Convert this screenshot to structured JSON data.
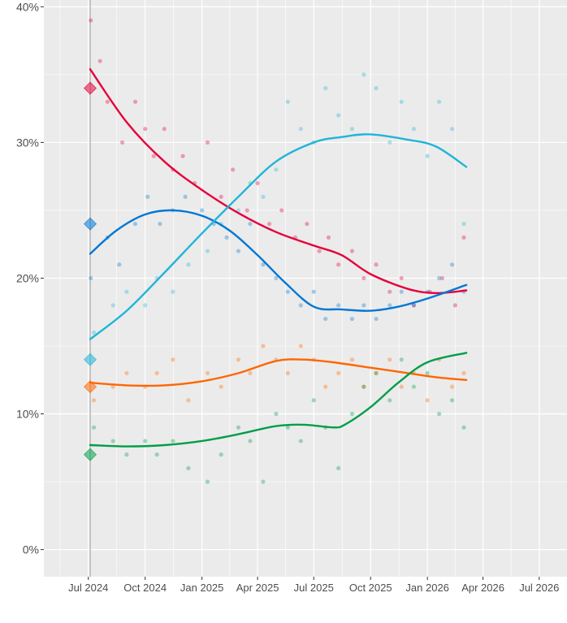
{
  "chart_data": {
    "type": "scatter",
    "title": "",
    "xlabel": "",
    "ylabel": "",
    "x_ticks": [
      "Jul 2024",
      "Oct 2024",
      "Jan 2025",
      "Apr 2025",
      "Jul 2025",
      "Oct 2025",
      "Jan 2026",
      "Apr 2026",
      "Jul 2026"
    ],
    "y_ticks": [
      "0%",
      "10%",
      "20%",
      "30%",
      "40%"
    ],
    "ylim": [
      -2,
      40.5
    ],
    "xlim": [
      "2024-04-20",
      "2026-08-15"
    ],
    "reference_line_date": "2024-07-04",
    "grid": true,
    "legend": "none",
    "series": [
      {
        "color": "#E4003B",
        "marker": 34,
        "trend": [
          [
            "2024-07-04",
            35.4
          ],
          [
            "2024-09-01",
            31.5
          ],
          [
            "2024-11-01",
            28.6
          ],
          [
            "2025-01-01",
            26.5
          ],
          [
            "2025-03-01",
            24.8
          ],
          [
            "2025-05-01",
            23.4
          ],
          [
            "2025-07-01",
            22.4
          ],
          [
            "2025-08-15",
            21.7
          ],
          [
            "2025-10-01",
            20.3
          ],
          [
            "2025-12-01",
            19.2
          ],
          [
            "2026-01-15",
            18.9
          ],
          [
            "2026-03-05",
            19.1
          ]
        ],
        "points": [
          [
            "2024-07-05",
            39
          ],
          [
            "2024-07-20",
            36
          ],
          [
            "2024-08-01",
            33
          ],
          [
            "2024-08-25",
            30
          ],
          [
            "2024-09-15",
            33
          ],
          [
            "2024-10-01",
            31
          ],
          [
            "2024-10-15",
            29
          ],
          [
            "2024-11-01",
            31
          ],
          [
            "2024-11-15",
            28
          ],
          [
            "2024-12-01",
            29
          ],
          [
            "2024-12-20",
            27
          ],
          [
            "2025-01-10",
            30
          ],
          [
            "2025-02-01",
            26
          ],
          [
            "2025-02-20",
            28
          ],
          [
            "2025-03-15",
            25
          ],
          [
            "2025-04-01",
            27
          ],
          [
            "2025-04-20",
            24
          ],
          [
            "2025-05-10",
            25
          ],
          [
            "2025-06-01",
            23
          ],
          [
            "2025-06-20",
            24
          ],
          [
            "2025-07-10",
            22
          ],
          [
            "2025-07-25",
            23
          ],
          [
            "2025-08-10",
            21
          ],
          [
            "2025-09-01",
            22
          ],
          [
            "2025-09-20",
            20
          ],
          [
            "2025-10-10",
            21
          ],
          [
            "2025-11-01",
            19
          ],
          [
            "2025-11-20",
            20
          ],
          [
            "2025-12-10",
            18
          ],
          [
            "2026-01-05",
            19
          ],
          [
            "2026-01-25",
            20
          ],
          [
            "2026-02-15",
            18
          ],
          [
            "2026-03-01",
            23
          ]
        ]
      },
      {
        "color": "#0077D4",
        "marker": 24,
        "trend": [
          [
            "2024-07-04",
            21.8
          ],
          [
            "2024-08-15",
            23.5
          ],
          [
            "2024-10-01",
            24.7
          ],
          [
            "2024-11-15",
            25.0
          ],
          [
            "2025-01-01",
            24.6
          ],
          [
            "2025-02-15",
            23.5
          ],
          [
            "2025-04-01",
            21.7
          ],
          [
            "2025-05-15",
            19.7
          ],
          [
            "2025-07-01",
            17.9
          ],
          [
            "2025-08-15",
            17.7
          ],
          [
            "2025-10-01",
            17.6
          ],
          [
            "2025-11-15",
            17.9
          ],
          [
            "2026-01-01",
            18.5
          ],
          [
            "2026-03-05",
            19.5
          ]
        ],
        "points": [
          [
            "2024-07-05",
            20
          ],
          [
            "2024-08-01",
            23
          ],
          [
            "2024-08-20",
            21
          ],
          [
            "2024-09-15",
            24
          ],
          [
            "2024-10-05",
            26
          ],
          [
            "2024-10-25",
            24
          ],
          [
            "2024-11-15",
            25
          ],
          [
            "2024-12-05",
            26
          ],
          [
            "2025-01-01",
            25
          ],
          [
            "2025-01-20",
            24
          ],
          [
            "2025-02-10",
            23
          ],
          [
            "2025-03-01",
            22
          ],
          [
            "2025-03-20",
            24
          ],
          [
            "2025-04-10",
            21
          ],
          [
            "2025-05-01",
            20
          ],
          [
            "2025-05-20",
            19
          ],
          [
            "2025-06-10",
            18
          ],
          [
            "2025-07-01",
            19
          ],
          [
            "2025-07-20",
            17
          ],
          [
            "2025-08-10",
            18
          ],
          [
            "2025-09-01",
            17
          ],
          [
            "2025-09-20",
            18
          ],
          [
            "2025-10-10",
            17
          ],
          [
            "2025-11-01",
            18
          ],
          [
            "2025-11-20",
            19
          ],
          [
            "2025-12-10",
            18
          ],
          [
            "2026-01-01",
            19
          ],
          [
            "2026-01-20",
            20
          ],
          [
            "2026-02-10",
            21
          ],
          [
            "2026-03-01",
            19
          ]
        ]
      },
      {
        "color": "#1FB5D8",
        "marker": 14,
        "trend": [
          [
            "2024-07-04",
            15.5
          ],
          [
            "2024-09-01",
            17.6
          ],
          [
            "2024-11-01",
            20.4
          ],
          [
            "2025-01-01",
            23.3
          ],
          [
            "2025-03-01",
            26.0
          ],
          [
            "2025-05-01",
            28.6
          ],
          [
            "2025-07-01",
            30.0
          ],
          [
            "2025-08-15",
            30.4
          ],
          [
            "2025-10-01",
            30.6
          ],
          [
            "2025-12-01",
            30.2
          ],
          [
            "2026-01-15",
            29.7
          ],
          [
            "2026-03-05",
            28.2
          ]
        ],
        "points": [
          [
            "2024-07-10",
            16
          ],
          [
            "2024-08-10",
            18
          ],
          [
            "2024-09-01",
            19
          ],
          [
            "2024-10-01",
            18
          ],
          [
            "2024-10-20",
            20
          ],
          [
            "2024-11-15",
            19
          ],
          [
            "2024-12-10",
            21
          ],
          [
            "2025-01-10",
            22
          ],
          [
            "2025-02-01",
            24
          ],
          [
            "2025-03-01",
            25
          ],
          [
            "2025-03-20",
            27
          ],
          [
            "2025-04-10",
            26
          ],
          [
            "2025-05-01",
            28
          ],
          [
            "2025-05-20",
            33
          ],
          [
            "2025-06-10",
            31
          ],
          [
            "2025-07-01",
            30
          ],
          [
            "2025-07-20",
            34
          ],
          [
            "2025-08-10",
            32
          ],
          [
            "2025-09-01",
            31
          ],
          [
            "2025-09-20",
            35
          ],
          [
            "2025-10-10",
            34
          ],
          [
            "2025-11-01",
            30
          ],
          [
            "2025-11-20",
            33
          ],
          [
            "2025-12-10",
            31
          ],
          [
            "2026-01-01",
            29
          ],
          [
            "2026-01-20",
            33
          ],
          [
            "2026-02-10",
            31
          ],
          [
            "2026-03-01",
            24
          ]
        ]
      },
      {
        "color": "#FF6600",
        "marker": 12,
        "trend": [
          [
            "2024-07-04",
            12.3
          ],
          [
            "2024-09-01",
            12.1
          ],
          [
            "2024-11-01",
            12.1
          ],
          [
            "2025-01-01",
            12.4
          ],
          [
            "2025-03-01",
            13.0
          ],
          [
            "2025-05-01",
            13.9
          ],
          [
            "2025-06-15",
            14.0
          ],
          [
            "2025-08-01",
            13.8
          ],
          [
            "2025-10-01",
            13.4
          ],
          [
            "2025-12-01",
            13.0
          ],
          [
            "2026-01-15",
            12.7
          ],
          [
            "2026-03-05",
            12.5
          ]
        ],
        "points": [
          [
            "2024-07-10",
            11
          ],
          [
            "2024-08-10",
            12
          ],
          [
            "2024-09-01",
            13
          ],
          [
            "2024-10-01",
            12
          ],
          [
            "2024-10-20",
            13
          ],
          [
            "2024-11-15",
            14
          ],
          [
            "2024-12-10",
            11
          ],
          [
            "2025-01-10",
            13
          ],
          [
            "2025-02-01",
            12
          ],
          [
            "2025-03-01",
            14
          ],
          [
            "2025-03-20",
            13
          ],
          [
            "2025-04-10",
            15
          ],
          [
            "2025-05-01",
            14
          ],
          [
            "2025-05-20",
            13
          ],
          [
            "2025-06-10",
            15
          ],
          [
            "2025-07-01",
            14
          ],
          [
            "2025-07-20",
            12
          ],
          [
            "2025-08-10",
            13
          ],
          [
            "2025-09-01",
            14
          ],
          [
            "2025-09-20",
            12
          ],
          [
            "2025-10-10",
            13
          ],
          [
            "2025-11-01",
            14
          ],
          [
            "2025-11-20",
            12
          ],
          [
            "2025-12-10",
            13
          ],
          [
            "2026-01-01",
            11
          ],
          [
            "2026-01-20",
            14
          ],
          [
            "2026-02-10",
            12
          ],
          [
            "2026-03-01",
            13
          ]
        ]
      },
      {
        "color": "#009E49",
        "marker": 7,
        "trend": [
          [
            "2024-07-04",
            7.7
          ],
          [
            "2024-09-01",
            7.6
          ],
          [
            "2024-11-01",
            7.7
          ],
          [
            "2025-01-01",
            8.0
          ],
          [
            "2025-03-01",
            8.5
          ],
          [
            "2025-05-01",
            9.1
          ],
          [
            "2025-06-15",
            9.2
          ],
          [
            "2025-08-01",
            9.0
          ],
          [
            "2025-08-20",
            9.2
          ],
          [
            "2025-10-01",
            10.5
          ],
          [
            "2025-11-15",
            12.3
          ],
          [
            "2026-01-01",
            13.8
          ],
          [
            "2026-03-05",
            14.5
          ]
        ],
        "points": [
          [
            "2024-07-10",
            9
          ],
          [
            "2024-08-10",
            8
          ],
          [
            "2024-09-01",
            7
          ],
          [
            "2024-10-01",
            8
          ],
          [
            "2024-10-20",
            7
          ],
          [
            "2024-11-15",
            8
          ],
          [
            "2024-12-10",
            6
          ],
          [
            "2025-01-10",
            5
          ],
          [
            "2025-02-01",
            7
          ],
          [
            "2025-03-01",
            9
          ],
          [
            "2025-03-20",
            8
          ],
          [
            "2025-04-10",
            5
          ],
          [
            "2025-05-01",
            10
          ],
          [
            "2025-05-20",
            9
          ],
          [
            "2025-06-10",
            8
          ],
          [
            "2025-07-01",
            11
          ],
          [
            "2025-07-20",
            9
          ],
          [
            "2025-08-10",
            6
          ],
          [
            "2025-09-01",
            10
          ],
          [
            "2025-09-20",
            12
          ],
          [
            "2025-10-10",
            13
          ],
          [
            "2025-11-01",
            11
          ],
          [
            "2025-11-20",
            14
          ],
          [
            "2025-12-10",
            12
          ],
          [
            "2026-01-01",
            13
          ],
          [
            "2026-01-20",
            10
          ],
          [
            "2026-02-10",
            11
          ],
          [
            "2026-03-01",
            9
          ]
        ]
      }
    ]
  }
}
